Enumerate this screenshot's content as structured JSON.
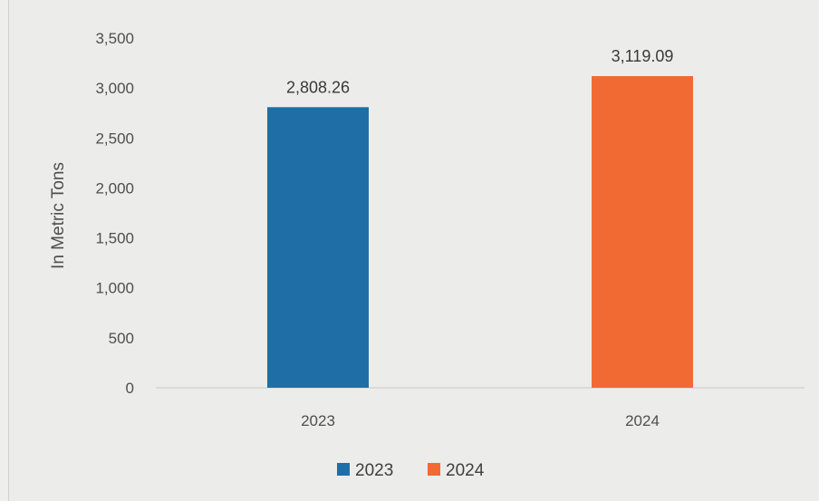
{
  "chart_data": {
    "type": "bar",
    "categories": [
      "2023",
      "2024"
    ],
    "values": [
      2808.26,
      3119.09
    ],
    "value_labels": [
      "2,808.26",
      "3,119.09"
    ],
    "ylabel": "In Metric Tons",
    "xlabel": "",
    "ylim": [
      0,
      3500
    ],
    "yticks": [
      0,
      500,
      1000,
      1500,
      2000,
      2500,
      3000,
      3500
    ],
    "ytick_labels": [
      "0",
      "500",
      "1,000",
      "1,500",
      "2,000",
      "2,500",
      "3,000",
      "3,500"
    ],
    "colors": [
      "#1f6fa6",
      "#f26a33"
    ],
    "grid": false,
    "legend": {
      "position": "bottom",
      "entries": [
        "2023",
        "2024"
      ]
    }
  }
}
